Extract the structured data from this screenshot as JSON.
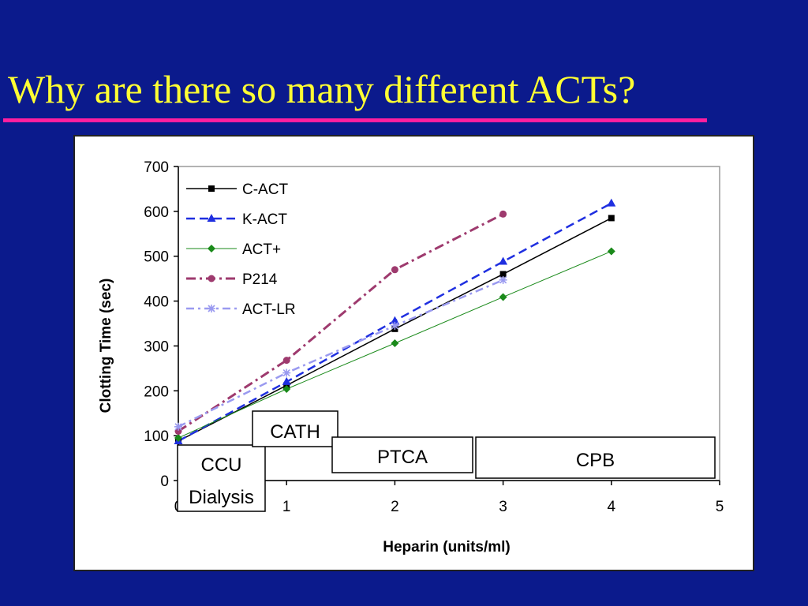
{
  "slide": {
    "title": "Why are there so many different ACTs?",
    "title_color": "#ffff33",
    "rule_color": "#ff1f9f",
    "background": "#0b1a8c"
  },
  "chart_data": {
    "type": "line",
    "xlabel": "Heparin (units/ml)",
    "ylabel": "Clotting Time (sec)",
    "xlim": [
      0,
      5
    ],
    "ylim": [
      0,
      700
    ],
    "x_ticks": [
      0,
      1,
      2,
      3,
      4,
      5
    ],
    "y_ticks": [
      0,
      100,
      200,
      300,
      400,
      500,
      600,
      700
    ],
    "grid": false,
    "legend_position": "top-left",
    "series": [
      {
        "name": "C-ACT",
        "color": "#000000",
        "dash": "solid",
        "marker": "square",
        "x": [
          0,
          1,
          2,
          3,
          4
        ],
        "y": [
          88,
          212,
          338,
          460,
          585
        ]
      },
      {
        "name": "K-ACT",
        "color": "#1f2fe0",
        "dash": "dashed",
        "marker": "triangle",
        "x": [
          0,
          1,
          2,
          3,
          4
        ],
        "y": [
          88,
          220,
          356,
          488,
          618
        ]
      },
      {
        "name": "ACT+",
        "color": "#1a8a1a",
        "dash": "thin",
        "marker": "diamond",
        "x": [
          0,
          1,
          2,
          3,
          4
        ],
        "y": [
          95,
          204,
          306,
          409,
          511
        ]
      },
      {
        "name": "P214",
        "color": "#9e3a6e",
        "dash": "dashdot",
        "marker": "circle",
        "x": [
          0,
          1,
          2,
          3
        ],
        "y": [
          110,
          268,
          470,
          594
        ]
      },
      {
        "name": "ACT-LR",
        "color": "#9a9af0",
        "dash": "dashdot-light",
        "marker": "star",
        "x": [
          0,
          1,
          2,
          3
        ],
        "y": [
          120,
          240,
          345,
          447
        ]
      }
    ],
    "annotations": [
      {
        "id": "ccu",
        "lines": [
          "CCU",
          "Dialysis"
        ]
      },
      {
        "id": "cath",
        "lines": [
          "CATH"
        ]
      },
      {
        "id": "ptca",
        "lines": [
          "PTCA"
        ]
      },
      {
        "id": "cpb",
        "lines": [
          "CPB"
        ]
      }
    ]
  }
}
